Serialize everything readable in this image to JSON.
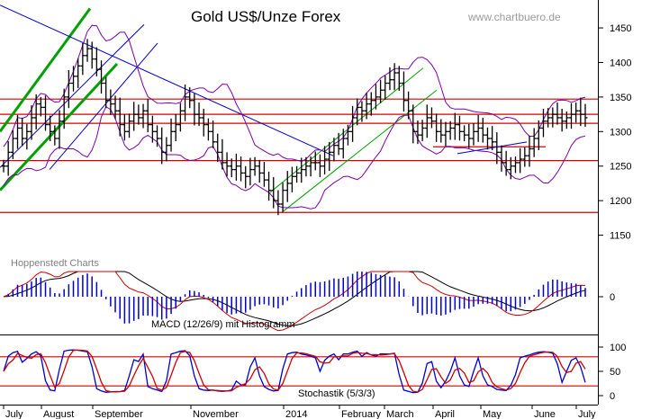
{
  "chart_data": {
    "type": "candlestick",
    "title": "Gold US$/Unze Forex",
    "watermark": "www.chartbuero.de",
    "source_label": "Hoppenstedt Charts",
    "colors": {
      "price": "#000000",
      "bollinger": "#7b00a8",
      "resistance": "#d40000",
      "trend_green": "#00a000",
      "trend_blue": "#0000cc",
      "macd_line": "#cc0000",
      "signal_line": "#000000",
      "histogram": "#0000cc",
      "stoch_k": "#0000cc",
      "stoch_d": "#cc0000"
    },
    "x_axis": {
      "labels": [
        "July",
        "August",
        "September",
        "November",
        "2014",
        "February",
        "March",
        "April",
        "May",
        "June",
        "July"
      ]
    },
    "price": {
      "ylim": [
        1100,
        1480
      ],
      "yticks": [
        1150,
        1200,
        1250,
        1300,
        1350,
        1400,
        1450
      ],
      "horizontal_lines": [
        1347,
        1325,
        1312,
        1258,
        1183
      ],
      "extra_hline": {
        "value": 1278,
        "from_month": "April",
        "to_month": "June"
      },
      "close": [
        1250,
        1270,
        1290,
        1305,
        1290,
        1300,
        1320,
        1340,
        1335,
        1310,
        1300,
        1290,
        1315,
        1350,
        1370,
        1380,
        1395,
        1410,
        1420,
        1405,
        1390,
        1370,
        1345,
        1340,
        1330,
        1310,
        1300,
        1315,
        1325,
        1320,
        1330,
        1310,
        1300,
        1290,
        1270,
        1280,
        1300,
        1310,
        1330,
        1350,
        1345,
        1325,
        1320,
        1310,
        1300,
        1285,
        1270,
        1255,
        1250,
        1245,
        1250,
        1240,
        1235,
        1245,
        1250,
        1240,
        1230,
        1215,
        1200,
        1195,
        1215,
        1225,
        1235,
        1240,
        1245,
        1250,
        1255,
        1255,
        1250,
        1260,
        1270,
        1280,
        1275,
        1290,
        1300,
        1320,
        1335,
        1330,
        1340,
        1345,
        1350,
        1360,
        1370,
        1375,
        1385,
        1370,
        1345,
        1330,
        1300,
        1295,
        1305,
        1320,
        1315,
        1300,
        1295,
        1300,
        1305,
        1310,
        1300,
        1295,
        1290,
        1300,
        1305,
        1295,
        1290,
        1285,
        1270,
        1255,
        1245,
        1250,
        1255,
        1260,
        1265,
        1275,
        1290,
        1305,
        1315,
        1320,
        1325,
        1320,
        1315,
        1320,
        1325,
        1330,
        1325,
        1320
      ]
    },
    "macd": {
      "label": "MACD (12/26/9) mit Histogramm",
      "ytick": "0"
    },
    "stochastic": {
      "label": "Stochastik (5/3/3)",
      "yticks": [
        "100",
        "50",
        "0"
      ],
      "hlines": [
        80,
        20
      ],
      "ylim": [
        0,
        100
      ]
    }
  }
}
